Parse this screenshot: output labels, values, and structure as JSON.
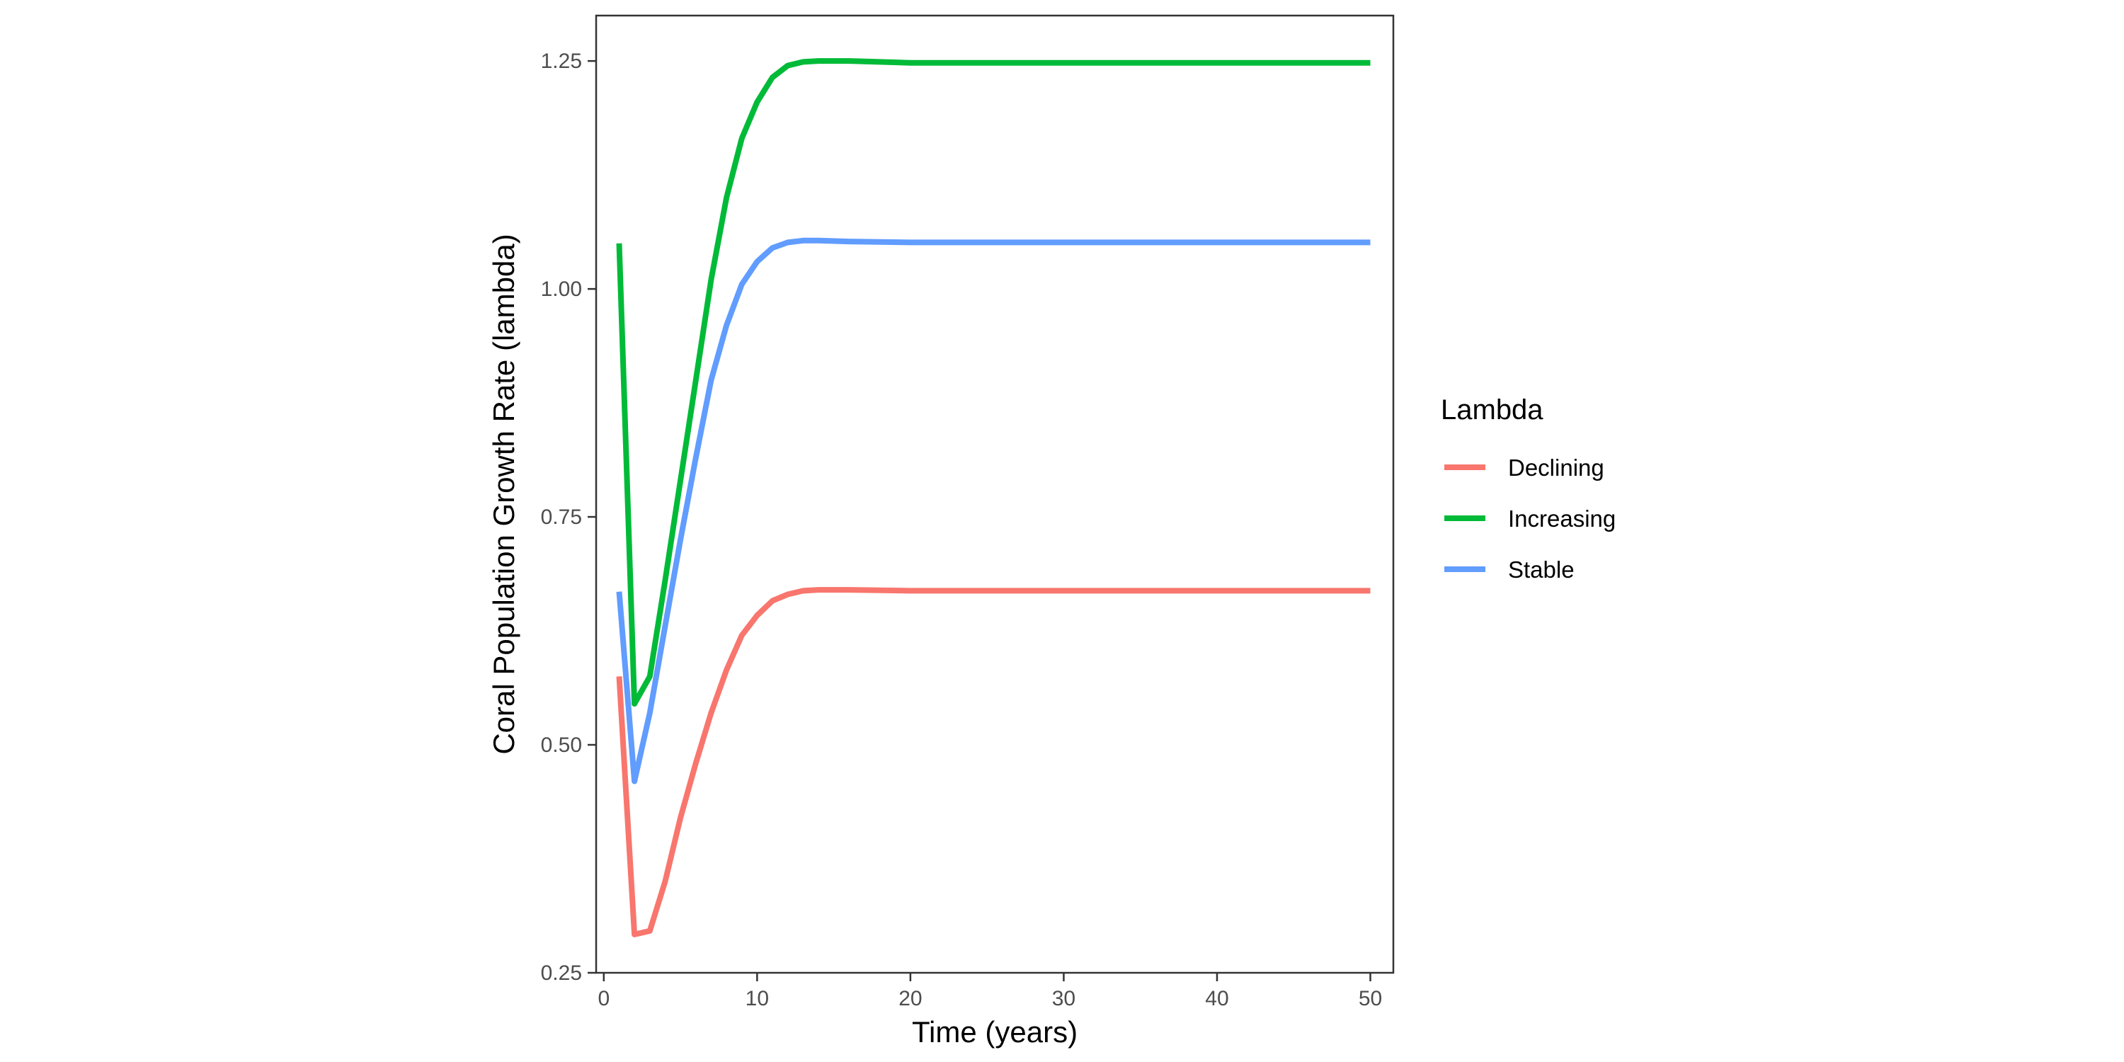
{
  "chart_data": {
    "type": "line",
    "title": "",
    "xlabel": "Time (years)",
    "ylabel": "Coral Population Growth Rate (lambda)",
    "xlim": [
      -0.5,
      51.5
    ],
    "ylim": [
      0.25,
      1.2998
    ],
    "x_ticks": [
      0,
      10,
      20,
      30,
      40,
      50
    ],
    "y_ticks": [
      0.25,
      0.5,
      0.75,
      1.0,
      1.25
    ],
    "x_tick_labels": [
      "0",
      "10",
      "20",
      "30",
      "40",
      "50"
    ],
    "y_tick_labels": [
      "0.25",
      "0.50",
      "0.75",
      "1.00",
      "1.25"
    ],
    "grid": false,
    "legend": {
      "title": "Lambda",
      "placement": "right"
    },
    "series": [
      {
        "name": "Declining",
        "color": "#F8766D",
        "points": [
          [
            1,
            0.575
          ],
          [
            2,
            0.292
          ],
          [
            3,
            0.296
          ],
          [
            4,
            0.35
          ],
          [
            5,
            0.42
          ],
          [
            6,
            0.48
          ],
          [
            7,
            0.535
          ],
          [
            8,
            0.582
          ],
          [
            9,
            0.62
          ],
          [
            10,
            0.642
          ],
          [
            11,
            0.658
          ],
          [
            12,
            0.665
          ],
          [
            13,
            0.669
          ],
          [
            14,
            0.67
          ],
          [
            16,
            0.67
          ],
          [
            20,
            0.669
          ],
          [
            30,
            0.669
          ],
          [
            40,
            0.669
          ],
          [
            50,
            0.669
          ]
        ]
      },
      {
        "name": "Increasing",
        "color": "#00BA38",
        "points": [
          [
            1,
            1.05
          ],
          [
            2,
            0.545
          ],
          [
            3,
            0.575
          ],
          [
            4,
            0.68
          ],
          [
            5,
            0.79
          ],
          [
            6,
            0.9
          ],
          [
            7,
            1.01
          ],
          [
            8,
            1.1
          ],
          [
            9,
            1.165
          ],
          [
            10,
            1.205
          ],
          [
            11,
            1.232
          ],
          [
            12,
            1.245
          ],
          [
            13,
            1.249
          ],
          [
            14,
            1.25
          ],
          [
            16,
            1.25
          ],
          [
            20,
            1.248
          ],
          [
            30,
            1.248
          ],
          [
            40,
            1.248
          ],
          [
            50,
            1.248
          ]
        ]
      },
      {
        "name": "Stable",
        "color": "#619CFF",
        "points": [
          [
            1,
            0.668
          ],
          [
            2,
            0.46
          ],
          [
            3,
            0.535
          ],
          [
            4,
            0.63
          ],
          [
            5,
            0.725
          ],
          [
            6,
            0.815
          ],
          [
            7,
            0.9
          ],
          [
            8,
            0.96
          ],
          [
            9,
            1.005
          ],
          [
            10,
            1.03
          ],
          [
            11,
            1.045
          ],
          [
            12,
            1.051
          ],
          [
            13,
            1.053
          ],
          [
            14,
            1.053
          ],
          [
            16,
            1.052
          ],
          [
            20,
            1.051
          ],
          [
            30,
            1.051
          ],
          [
            40,
            1.051
          ],
          [
            50,
            1.051
          ]
        ]
      }
    ]
  }
}
